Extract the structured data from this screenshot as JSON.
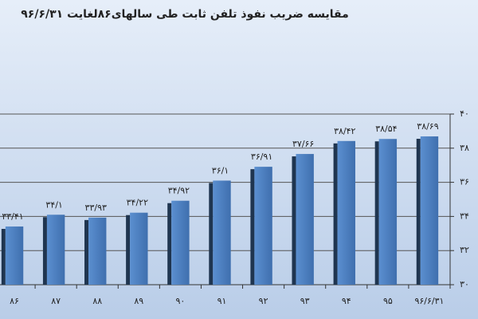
{
  "chart_data": {
    "type": "bar",
    "title": "مقایسه ضریب نفوذ تلفن ثابت طی سالهای۸۶لغایت ۹۶/۶/۳۱",
    "categories": [
      "۸۶",
      "۸۷",
      "۸۸",
      "۸۹",
      "۹۰",
      "۹۱",
      "۹۲",
      "۹۳",
      "۹۴",
      "۹۵",
      "۹۶/۶/۳۱"
    ],
    "values": [
      33.41,
      34.1,
      33.93,
      34.22,
      34.92,
      36.1,
      36.91,
      37.66,
      38.42,
      38.54,
      38.69
    ],
    "value_labels": [
      "۳۳/۴۱",
      "۳۴/۱",
      "۳۳/۹۳",
      "۳۴/۲۲",
      "۳۴/۹۲",
      "۳۶/۱",
      "۳۶/۹۱",
      "۳۷/۶۶",
      "۳۸/۴۲",
      "۳۸/۵۴",
      "۳۸/۶۹"
    ],
    "color": "#4f81bd",
    "ylim": [
      30,
      40
    ],
    "yticks": [
      {
        "value": 30,
        "label": "۳۰"
      },
      {
        "value": 32,
        "label": "۳۲"
      },
      {
        "value": 34,
        "label": "۳۴"
      },
      {
        "value": 36,
        "label": "۳۶"
      },
      {
        "value": 38,
        "label": "۳۸"
      },
      {
        "value": 40,
        "label": "۴۰"
      }
    ],
    "grid": true
  }
}
